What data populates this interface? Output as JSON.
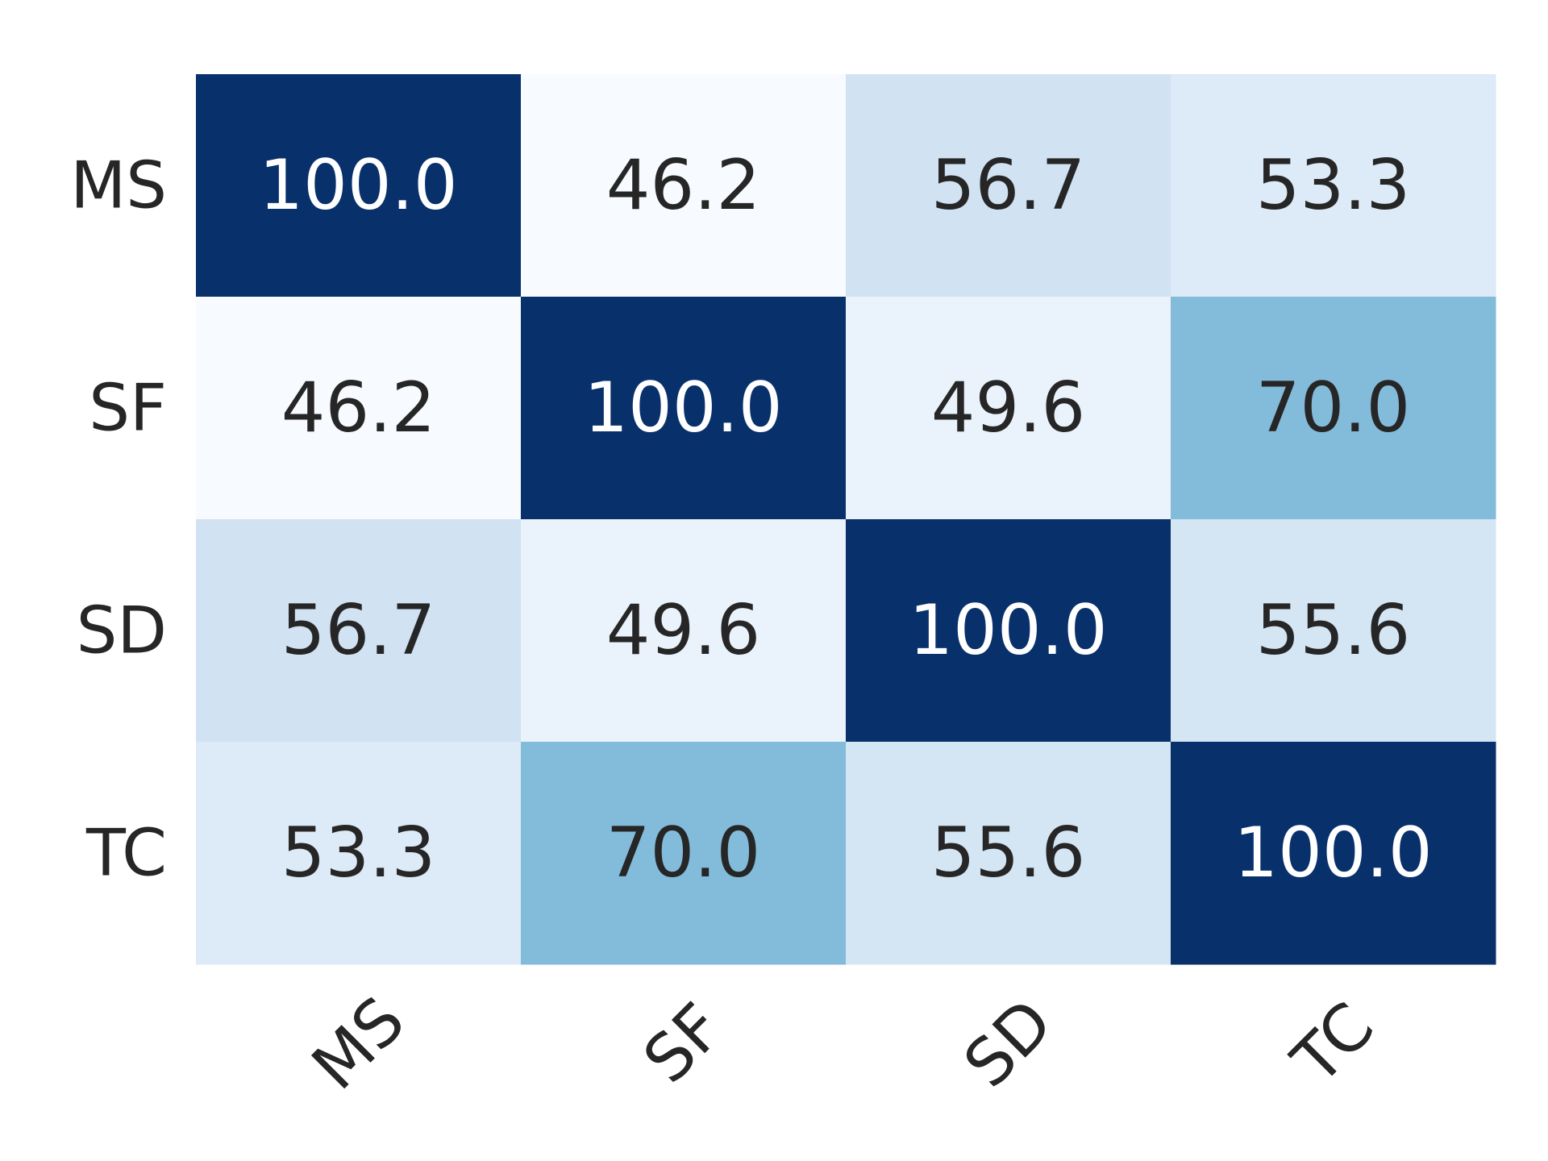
{
  "chart_data": {
    "type": "heatmap",
    "title": "",
    "xlabel": "",
    "ylabel": "",
    "x_categories": [
      "MS",
      "SF",
      "SD",
      "TC"
    ],
    "y_categories": [
      "MS",
      "SF",
      "SD",
      "TC"
    ],
    "values": [
      [
        100.0,
        46.2,
        56.7,
        53.3
      ],
      [
        46.2,
        100.0,
        49.6,
        70.0
      ],
      [
        56.7,
        49.6,
        100.0,
        55.6
      ],
      [
        53.3,
        70.0,
        55.6,
        100.0
      ]
    ],
    "value_labels": [
      [
        "100.0",
        "46.2",
        "56.7",
        "53.3"
      ],
      [
        "46.2",
        "100.0",
        "49.6",
        "70.0"
      ],
      [
        "56.7",
        "49.6",
        "100.0",
        "55.6"
      ],
      [
        "53.3",
        "70.0",
        "55.6",
        "100.0"
      ]
    ],
    "colormap": "Blues",
    "vmin": 46.2,
    "vmax": 100.0,
    "colorbar": false,
    "x_tick_rotation_deg": 45,
    "text_color_dark": "#262626",
    "text_color_light": "#ffffff"
  }
}
